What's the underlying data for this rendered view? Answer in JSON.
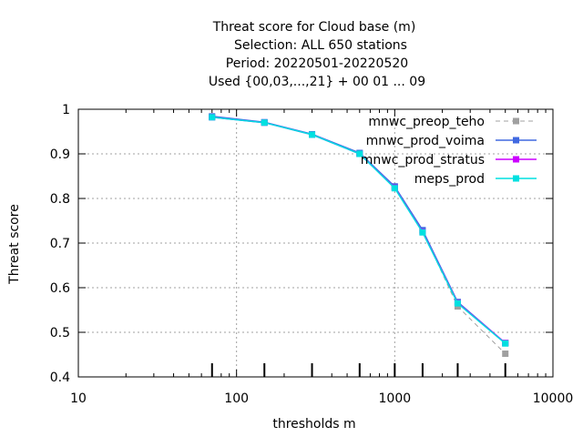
{
  "chart_data": {
    "type": "line",
    "title_lines": [
      "Threat score  for Cloud base (m)",
      "Selection: ALL    650 stations",
      "Period: 20220501-20220520",
      "Used {00,03,...,21} + 00 01 ... 09"
    ],
    "xlabel": "thresholds m",
    "ylabel": "Threat score",
    "x_scale": "log",
    "xlim": [
      10,
      10000
    ],
    "ylim": [
      0.4,
      1.0
    ],
    "x_ticks": [
      10,
      100,
      1000,
      10000
    ],
    "x_tick_labels": [
      "10",
      "100",
      "1000",
      "10000"
    ],
    "y_ticks": [
      0.4,
      0.5,
      0.6,
      0.7,
      0.8,
      0.9,
      1.0
    ],
    "y_tick_labels": [
      "0.4",
      "0.5",
      "0.6",
      "0.7",
      "0.8",
      "0.9",
      "1"
    ],
    "grid": true,
    "legend_position": "top-right",
    "x": [
      70,
      150,
      300,
      600,
      1000,
      1500,
      2500,
      5000
    ],
    "threshold_markers": [
      70,
      150,
      300,
      600,
      1000,
      1500,
      2500,
      5000
    ],
    "series": [
      {
        "name": "mnwc_preop_teho",
        "color": "#a0a0a0",
        "dashed": true,
        "marker": "square",
        "values": [
          0.983,
          0.97,
          0.943,
          0.9,
          0.825,
          0.727,
          0.558,
          0.452
        ]
      },
      {
        "name": "mnwc_prod_voima",
        "color": "#4169e1",
        "dashed": false,
        "marker": "square",
        "values": [
          0.984,
          0.971,
          0.944,
          0.902,
          0.827,
          0.729,
          0.568,
          0.476
        ]
      },
      {
        "name": "mnwc_prod_stratus",
        "color": "#cc00ff",
        "dashed": false,
        "marker": "square",
        "values": [
          0.982,
          0.97,
          0.943,
          0.9,
          0.824,
          0.725,
          0.566,
          0.476
        ]
      },
      {
        "name": "meps_prod",
        "color": "#00e0e0",
        "dashed": false,
        "marker": "square",
        "values": [
          0.982,
          0.97,
          0.943,
          0.9,
          0.823,
          0.724,
          0.565,
          0.475
        ]
      }
    ]
  }
}
